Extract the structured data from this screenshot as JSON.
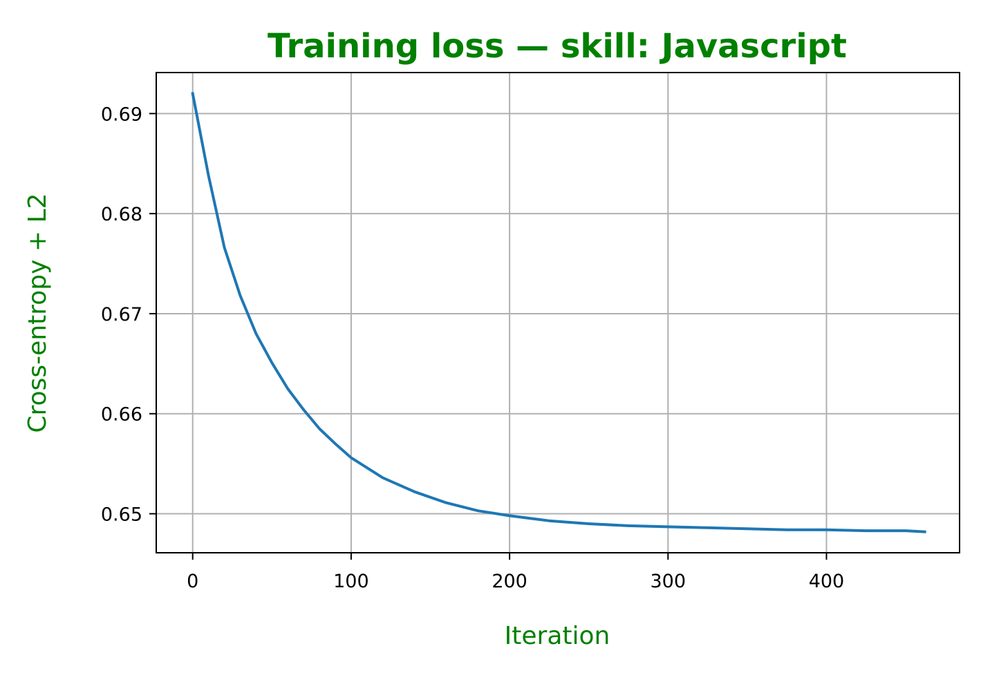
{
  "chart_data": {
    "type": "line",
    "title": "Training loss — skill: Javascript",
    "xlabel": "Iteration",
    "ylabel": "Cross-entropy + L2",
    "xlim": [
      -23,
      484
    ],
    "ylim": [
      0.6461,
      0.6941
    ],
    "grid": true,
    "legend": "none",
    "x_ticks": [
      0,
      100,
      200,
      300,
      400
    ],
    "x_tick_labels": [
      "0",
      "100",
      "200",
      "300",
      "400"
    ],
    "y_ticks": [
      0.65,
      0.66,
      0.67,
      0.68,
      0.69
    ],
    "y_tick_labels": [
      "0.65",
      "0.66",
      "0.67",
      "0.68",
      "0.69"
    ],
    "series": [
      {
        "color": "#1f77b4",
        "x": [
          0,
          10,
          20,
          30,
          40,
          50,
          60,
          70,
          80,
          90,
          100,
          120,
          140,
          160,
          180,
          200,
          225,
          250,
          275,
          300,
          325,
          350,
          375,
          400,
          425,
          450,
          462
        ],
        "y": [
          0.692,
          0.6838,
          0.6766,
          0.6718,
          0.668,
          0.6651,
          0.6625,
          0.6604,
          0.6585,
          0.657,
          0.6556,
          0.6536,
          0.6522,
          0.6511,
          0.6503,
          0.6498,
          0.6493,
          0.649,
          0.6488,
          0.6487,
          0.6486,
          0.6485,
          0.6484,
          0.6484,
          0.6483,
          0.6483,
          0.6482
        ]
      }
    ]
  },
  "colors": {
    "line": "#1f77b4",
    "title": "#008000",
    "axis_labels": "#008000",
    "grid": "#b0b0b0"
  }
}
